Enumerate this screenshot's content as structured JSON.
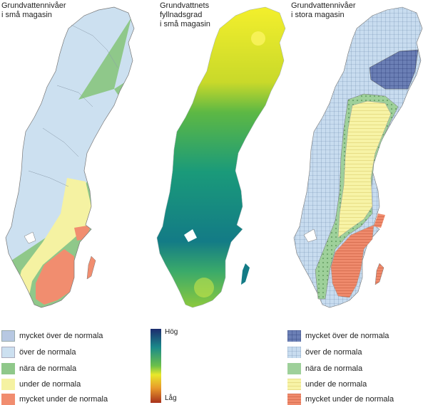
{
  "panels": [
    {
      "title": "Grundvattennivåer\ni små magasin"
    },
    {
      "title": "Grundvattnets\nfyllnadsgrad\ni små magasin"
    },
    {
      "title": "Grundvattennivåer\ni stora magasin"
    }
  ],
  "legend_left": [
    {
      "label": "mycket över de normala",
      "color": "#b7c8e2"
    },
    {
      "label": "över de normala",
      "color": "#cce0f0"
    },
    {
      "label": "nära de normala",
      "color": "#8fc88a"
    },
    {
      "label": "under de normala",
      "color": "#f5f2a2"
    },
    {
      "label": "mycket under de normala",
      "color": "#f18d6f"
    }
  ],
  "legend_right": [
    {
      "label": "mycket över de normala",
      "color": "#6b7fb5",
      "pattern": "grid"
    },
    {
      "label": "över de normala",
      "color": "#c8dcef",
      "pattern": "grid"
    },
    {
      "label": "nära de normala",
      "color": "#9ed09a",
      "pattern": "dots"
    },
    {
      "label": "under de normala",
      "color": "#f7f3a6",
      "pattern": "hlines"
    },
    {
      "label": "mycket under de normala",
      "color": "#ef8a6c",
      "pattern": "hlines"
    }
  ],
  "gradient": {
    "high": "Hög",
    "low": "Låg"
  },
  "colors": {
    "over": "#cce0f0",
    "near": "#8fc88a",
    "under": "#f5f2a2",
    "very_under": "#f18d6f",
    "very_over_large": "#6b7fb5",
    "over_large": "#c8dcef",
    "near_large": "#9ed09a",
    "under_large": "#f7f3a6",
    "very_under_large": "#ef8a6c"
  }
}
